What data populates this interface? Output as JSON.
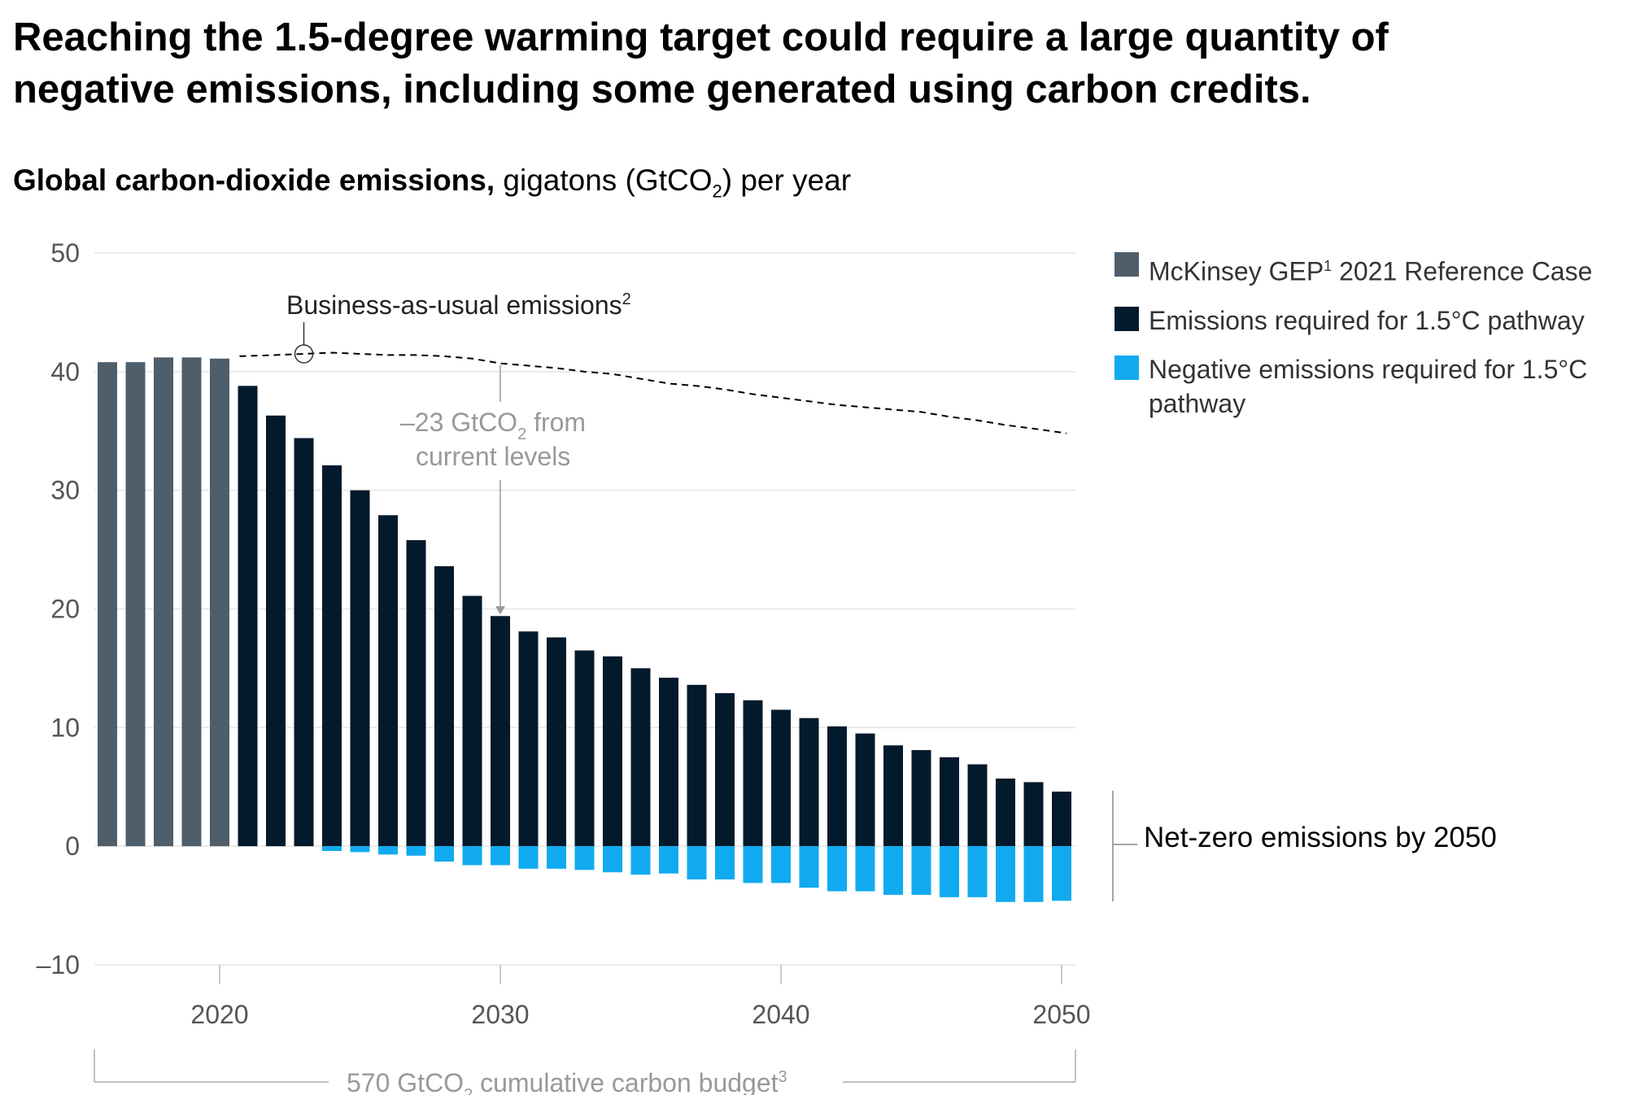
{
  "title": "Reaching the 1.5-degree warming target could require a large quantity of negative emissions, including some generated using carbon credits.",
  "subtitle": {
    "bold": "Global carbon-dioxide emissions,",
    "rest": " gigatons (GtCO",
    "sub": "2",
    "end": ") per year"
  },
  "legend": [
    {
      "label": "McKinsey GEP",
      "sup": "1",
      "label_end": " 2021 Reference Case",
      "color": "#4e5e6b"
    },
    {
      "label": "Emissions required for 1.5°C pathway",
      "sup": "",
      "label_end": "",
      "color": "#031a2c"
    },
    {
      "label": "Negative emissions required for 1.5°C pathway",
      "sup": "",
      "label_end": "",
      "color": "#11aaf0"
    }
  ],
  "annotations": {
    "bau": {
      "text": "Business-as-usual emissions",
      "sup": "2"
    },
    "reduction": {
      "line1_a": "–23 GtCO",
      "line1_sub": "2",
      "line1_b": " from",
      "line2": "current levels"
    },
    "netzero": "Net-zero emissions by 2050",
    "budget": {
      "a": "570 GtCO",
      "sub": "2",
      "b": " cumulative carbon budget",
      "sup": "3"
    }
  },
  "chart_data": {
    "type": "bar",
    "title": "Global carbon-dioxide emissions, gigatons (GtCO2) per year",
    "ylim": [
      -10,
      50
    ],
    "yticks": [
      "50",
      "40",
      "30",
      "20",
      "10",
      "0",
      "–10"
    ],
    "ytick_values": [
      50,
      40,
      30,
      20,
      10,
      0,
      -10
    ],
    "xticks": [
      "2020",
      "2030",
      "2040",
      "2050"
    ],
    "xtick_values": [
      2020,
      2030,
      2040,
      2050
    ],
    "grid": true,
    "legend_position": "right",
    "x": [
      2016,
      2017,
      2018,
      2019,
      2020,
      2021,
      2022,
      2023,
      2024,
      2025,
      2026,
      2027,
      2028,
      2029,
      2030,
      2031,
      2032,
      2033,
      2034,
      2035,
      2036,
      2037,
      2038,
      2039,
      2040,
      2041,
      2042,
      2043,
      2044,
      2045,
      2046,
      2047,
      2048,
      2049,
      2050
    ],
    "series": [
      {
        "name": "McKinsey GEP1 2021 Reference Case",
        "color": "#4e5e6b",
        "values": [
          40.8,
          40.8,
          41.2,
          41.2,
          41.1,
          null,
          null,
          null,
          null,
          null,
          null,
          null,
          null,
          null,
          null,
          null,
          null,
          null,
          null,
          null,
          null,
          null,
          null,
          null,
          null,
          null,
          null,
          null,
          null,
          null,
          null,
          null,
          null,
          null,
          null
        ]
      },
      {
        "name": "Emissions required for 1.5°C pathway",
        "color": "#031a2c",
        "values": [
          null,
          null,
          null,
          null,
          null,
          38.8,
          36.3,
          34.4,
          32.1,
          30.0,
          27.9,
          25.8,
          23.6,
          21.1,
          19.4,
          18.1,
          17.6,
          16.5,
          16.0,
          15.0,
          14.2,
          13.6,
          12.9,
          12.3,
          11.5,
          10.8,
          10.1,
          9.5,
          8.5,
          8.1,
          7.5,
          6.9,
          5.7,
          5.4,
          4.6
        ]
      },
      {
        "name": "Negative emissions required for 1.5°C pathway",
        "color": "#11aaf0",
        "values": [
          null,
          null,
          null,
          null,
          null,
          null,
          null,
          null,
          -0.4,
          -0.5,
          -0.7,
          -0.8,
          -1.3,
          -1.6,
          -1.6,
          -1.9,
          -1.9,
          -2.0,
          -2.2,
          -2.4,
          -2.3,
          -2.8,
          -2.8,
          -3.1,
          -3.1,
          -3.5,
          -3.8,
          -3.8,
          -4.1,
          -4.1,
          -4.3,
          -4.3,
          -4.7,
          -4.7,
          -4.6
        ]
      }
    ],
    "business_as_usual": {
      "x": [
        2021,
        2022,
        2023,
        2024,
        2025,
        2026,
        2027,
        2028,
        2029,
        2030,
        2031,
        2032,
        2033,
        2034,
        2035,
        2036,
        2037,
        2038,
        2039,
        2040,
        2041,
        2042,
        2043,
        2044,
        2045,
        2046,
        2047,
        2048,
        2049,
        2050
      ],
      "y": [
        41.3,
        41.4,
        41.5,
        41.6,
        41.5,
        41.4,
        41.4,
        41.3,
        41.1,
        40.7,
        40.5,
        40.3,
        40.0,
        39.8,
        39.4,
        39.0,
        38.8,
        38.5,
        38.1,
        37.8,
        37.5,
        37.2,
        37.0,
        36.8,
        36.6,
        36.2,
        35.9,
        35.5,
        35.2,
        34.8
      ]
    }
  }
}
